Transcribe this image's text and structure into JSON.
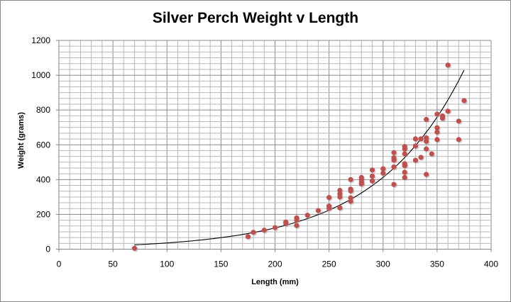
{
  "chart_data": {
    "type": "scatter",
    "title": "Silver Perch Weight v Length",
    "xlabel": "Length (mm)",
    "ylabel": "Weight (grams)",
    "xlim": [
      0,
      400
    ],
    "ylim": [
      0,
      1200
    ],
    "xticks": [
      0,
      50,
      100,
      150,
      200,
      250,
      300,
      350,
      400
    ],
    "yticks": [
      0,
      200,
      400,
      600,
      800,
      1000,
      1200
    ],
    "grid": true,
    "legend": "none",
    "marker_color": "#c0504d",
    "points": [
      [
        70,
        5
      ],
      [
        175,
        72
      ],
      [
        180,
        97
      ],
      [
        190,
        109
      ],
      [
        200,
        124
      ],
      [
        210,
        156
      ],
      [
        210,
        147
      ],
      [
        220,
        180
      ],
      [
        220,
        167
      ],
      [
        220,
        136
      ],
      [
        230,
        195
      ],
      [
        240,
        222
      ],
      [
        250,
        297
      ],
      [
        250,
        248
      ],
      [
        250,
        235
      ],
      [
        260,
        338
      ],
      [
        260,
        318
      ],
      [
        260,
        300
      ],
      [
        260,
        238
      ],
      [
        270,
        400
      ],
      [
        270,
        345
      ],
      [
        270,
        335
      ],
      [
        270,
        295
      ],
      [
        270,
        275
      ],
      [
        280,
        412
      ],
      [
        280,
        400
      ],
      [
        280,
        385
      ],
      [
        280,
        375
      ],
      [
        290,
        455
      ],
      [
        290,
        420
      ],
      [
        290,
        392
      ],
      [
        300,
        462
      ],
      [
        300,
        437
      ],
      [
        310,
        555
      ],
      [
        310,
        525
      ],
      [
        310,
        512
      ],
      [
        310,
        473
      ],
      [
        310,
        372
      ],
      [
        320,
        590
      ],
      [
        320,
        576
      ],
      [
        320,
        548
      ],
      [
        320,
        491
      ],
      [
        320,
        480
      ],
      [
        320,
        442
      ],
      [
        320,
        412
      ],
      [
        330,
        634
      ],
      [
        330,
        593
      ],
      [
        330,
        511
      ],
      [
        335,
        634
      ],
      [
        335,
        528
      ],
      [
        340,
        746
      ],
      [
        340,
        640
      ],
      [
        340,
        620
      ],
      [
        340,
        576
      ],
      [
        340,
        430
      ],
      [
        345,
        548
      ],
      [
        350,
        776
      ],
      [
        350,
        698
      ],
      [
        350,
        673
      ],
      [
        350,
        630
      ],
      [
        355,
        766
      ],
      [
        355,
        752
      ],
      [
        360,
        1058
      ],
      [
        360,
        793
      ],
      [
        370,
        736
      ],
      [
        370,
        630
      ],
      [
        375,
        854
      ]
    ],
    "trendline": {
      "type": "exponential",
      "x_range": [
        70,
        375
      ],
      "y_start": 25,
      "y_end": 1030,
      "color": "#000000"
    }
  }
}
